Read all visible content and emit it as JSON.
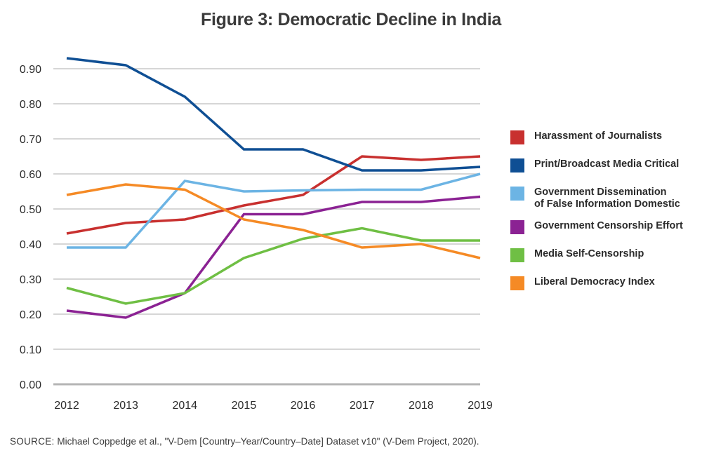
{
  "chart_data": {
    "type": "line",
    "title": "Figure 3: Democratic Decline in India",
    "xlabel": "",
    "ylabel": "",
    "x": [
      "2012",
      "2013",
      "2014",
      "2015",
      "2016",
      "2017",
      "2018",
      "2019"
    ],
    "ylim": [
      0,
      0.9
    ],
    "yticks": [
      "0.00",
      "0.10",
      "0.20",
      "0.30",
      "0.40",
      "0.50",
      "0.60",
      "0.70",
      "0.80",
      "0.90"
    ],
    "ytick_values": [
      0,
      0.1,
      0.2,
      0.3,
      0.4,
      0.5,
      0.6,
      0.7,
      0.8,
      0.9
    ],
    "grid": true,
    "legend_position": "right",
    "series": [
      {
        "name": "Harassment of Journalists",
        "color": "#c8302f",
        "values": [
          0.43,
          0.46,
          0.47,
          0.51,
          0.54,
          0.65,
          0.64,
          0.65
        ]
      },
      {
        "name": "Print/Broadcast Media Critical",
        "color": "#0f4f94",
        "values": [
          0.93,
          0.91,
          0.82,
          0.67,
          0.67,
          0.61,
          0.61,
          0.62
        ]
      },
      {
        "name": "Government Dissemination\nof False Information Domestic",
        "color": "#6cb4e4",
        "values": [
          0.39,
          0.39,
          0.58,
          0.55,
          0.553,
          0.555,
          0.555,
          0.6
        ]
      },
      {
        "name": "Government Censorship Effort",
        "color": "#8b2293",
        "values": [
          0.21,
          0.19,
          0.26,
          0.485,
          0.485,
          0.52,
          0.52,
          0.535
        ]
      },
      {
        "name": "Media Self-Censorship",
        "color": "#6fbf44",
        "values": [
          0.275,
          0.23,
          0.26,
          0.36,
          0.415,
          0.445,
          0.41,
          0.41
        ]
      },
      {
        "name": "Liberal Democracy Index",
        "color": "#f58a25",
        "values": [
          0.54,
          0.57,
          0.555,
          0.47,
          0.44,
          0.39,
          0.4,
          0.36
        ]
      }
    ]
  },
  "source": {
    "label": "SOURCE:",
    "text": "Michael Coppedge et al., \"V-Dem [Country–Year/Country–Date] Dataset v10\" (V-Dem Project, 2020)."
  }
}
